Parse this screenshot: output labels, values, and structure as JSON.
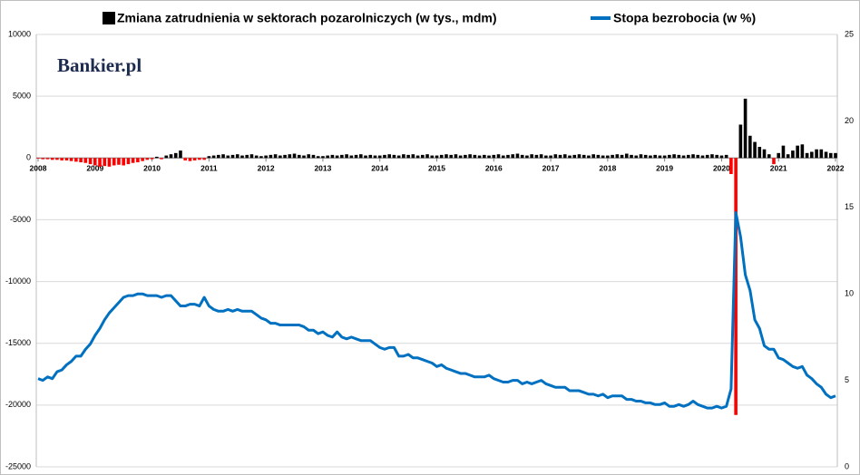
{
  "chart_data": {
    "type": "bar",
    "watermark": "Bankier.pl",
    "categories": [
      "2008",
      null,
      null,
      null,
      null,
      null,
      null,
      null,
      null,
      null,
      null,
      null,
      "2009",
      null,
      null,
      null,
      null,
      null,
      null,
      null,
      null,
      null,
      null,
      null,
      "2010",
      null,
      null,
      null,
      null,
      null,
      null,
      null,
      null,
      null,
      null,
      null,
      "2011",
      null,
      null,
      null,
      null,
      null,
      null,
      null,
      null,
      null,
      null,
      null,
      "2012",
      null,
      null,
      null,
      null,
      null,
      null,
      null,
      null,
      null,
      null,
      null,
      "2013",
      null,
      null,
      null,
      null,
      null,
      null,
      null,
      null,
      null,
      null,
      null,
      "2014",
      null,
      null,
      null,
      null,
      null,
      null,
      null,
      null,
      null,
      null,
      null,
      "2015",
      null,
      null,
      null,
      null,
      null,
      null,
      null,
      null,
      null,
      null,
      null,
      "2016",
      null,
      null,
      null,
      null,
      null,
      null,
      null,
      null,
      null,
      null,
      null,
      "2017",
      null,
      null,
      null,
      null,
      null,
      null,
      null,
      null,
      null,
      null,
      null,
      "2018",
      null,
      null,
      null,
      null,
      null,
      null,
      null,
      null,
      null,
      null,
      null,
      "2019",
      null,
      null,
      null,
      null,
      null,
      null,
      null,
      null,
      null,
      null,
      null,
      "2020",
      null,
      null,
      null,
      null,
      null,
      null,
      null,
      null,
      null,
      null,
      null,
      "2021",
      null,
      null,
      null,
      null,
      null,
      null,
      null,
      null,
      null,
      null,
      null,
      "2022"
    ],
    "series": [
      {
        "name": "Zmiana zatrudnienia w sektorach pozarolniczych (w tys., mdm)",
        "type": "bar",
        "color": "#000000",
        "negative_color": "#ff0000",
        "values": [
          -50,
          -100,
          -100,
          -150,
          -150,
          -200,
          -200,
          -250,
          -300,
          -350,
          -400,
          -500,
          -600,
          -700,
          -650,
          -700,
          -600,
          -550,
          -600,
          -500,
          -400,
          -350,
          -250,
          -150,
          -100,
          100,
          -100,
          200,
          300,
          400,
          600,
          -200,
          -250,
          -200,
          -150,
          -150,
          150,
          200,
          250,
          300,
          200,
          250,
          300,
          200,
          250,
          300,
          200,
          150,
          200,
          250,
          300,
          200,
          250,
          300,
          350,
          250,
          200,
          300,
          250,
          150,
          150,
          200,
          250,
          200,
          250,
          300,
          200,
          250,
          300,
          200,
          250,
          200,
          200,
          250,
          300,
          250,
          200,
          300,
          250,
          300,
          200,
          250,
          300,
          200,
          200,
          250,
          300,
          250,
          300,
          200,
          250,
          300,
          250,
          200,
          250,
          200,
          250,
          300,
          200,
          250,
          300,
          350,
          250,
          200,
          300,
          250,
          300,
          200,
          200,
          300,
          250,
          300,
          200,
          250,
          300,
          250,
          200,
          300,
          250,
          200,
          200,
          250,
          300,
          250,
          350,
          250,
          200,
          300,
          250,
          200,
          250,
          200,
          200,
          250,
          300,
          250,
          200,
          250,
          300,
          250,
          200,
          250,
          300,
          250,
          200,
          250,
          -1300,
          -20800,
          2700,
          4800,
          1800,
          1300,
          900,
          700,
          300,
          -500,
          400,
          1000,
          300,
          600,
          1000,
          1100,
          400,
          500,
          700,
          700,
          500,
          400,
          400
        ]
      },
      {
        "name": "Stopa bezrobocia (w %)",
        "type": "line",
        "color": "#0070c0",
        "axis": "y2",
        "values": [
          5.1,
          5.0,
          5.2,
          5.1,
          5.5,
          5.6,
          5.9,
          6.1,
          6.4,
          6.4,
          6.8,
          7.1,
          7.6,
          8.0,
          8.5,
          8.9,
          9.2,
          9.5,
          9.8,
          9.9,
          9.9,
          10.0,
          10.0,
          9.9,
          9.9,
          9.9,
          9.8,
          9.9,
          9.9,
          9.6,
          9.3,
          9.3,
          9.4,
          9.4,
          9.3,
          9.8,
          9.3,
          9.1,
          9.0,
          9.0,
          9.1,
          9.0,
          9.1,
          9.0,
          9.0,
          9.0,
          8.8,
          8.6,
          8.5,
          8.3,
          8.3,
          8.2,
          8.2,
          8.2,
          8.2,
          8.2,
          8.1,
          7.9,
          7.9,
          7.7,
          7.8,
          7.6,
          7.5,
          7.8,
          7.5,
          7.4,
          7.5,
          7.4,
          7.3,
          7.3,
          7.3,
          7.1,
          6.9,
          6.8,
          6.9,
          6.9,
          6.4,
          6.4,
          6.5,
          6.3,
          6.3,
          6.2,
          6.1,
          6.0,
          5.8,
          5.9,
          5.7,
          5.6,
          5.5,
          5.4,
          5.4,
          5.3,
          5.2,
          5.2,
          5.2,
          5.3,
          5.1,
          5.0,
          4.9,
          4.9,
          5.0,
          5.0,
          4.8,
          4.9,
          4.8,
          4.9,
          5.0,
          4.8,
          4.7,
          4.6,
          4.6,
          4.6,
          4.4,
          4.4,
          4.4,
          4.3,
          4.2,
          4.2,
          4.1,
          4.2,
          4.0,
          4.1,
          4.1,
          4.1,
          3.9,
          3.9,
          3.8,
          3.8,
          3.7,
          3.7,
          3.6,
          3.6,
          3.7,
          3.5,
          3.5,
          3.6,
          3.5,
          3.6,
          3.8,
          3.6,
          3.5,
          3.4,
          3.4,
          3.5,
          3.4,
          3.5,
          4.5,
          14.7,
          13.3,
          11.1,
          10.2,
          8.5,
          8.0,
          7.0,
          6.8,
          6.8,
          6.3,
          6.2,
          6.0,
          5.8,
          5.7,
          5.8,
          5.3,
          5.1,
          4.8,
          4.6,
          4.2,
          4.0,
          4.1
        ]
      }
    ],
    "ylim": [
      -25000,
      10000
    ],
    "yticks": [
      10000,
      5000,
      0,
      -5000,
      -10000,
      -15000,
      -20000,
      -25000
    ],
    "y2lim": [
      0,
      25
    ],
    "y2ticks": [
      0,
      5,
      10,
      15,
      20,
      25
    ],
    "grid": true
  }
}
